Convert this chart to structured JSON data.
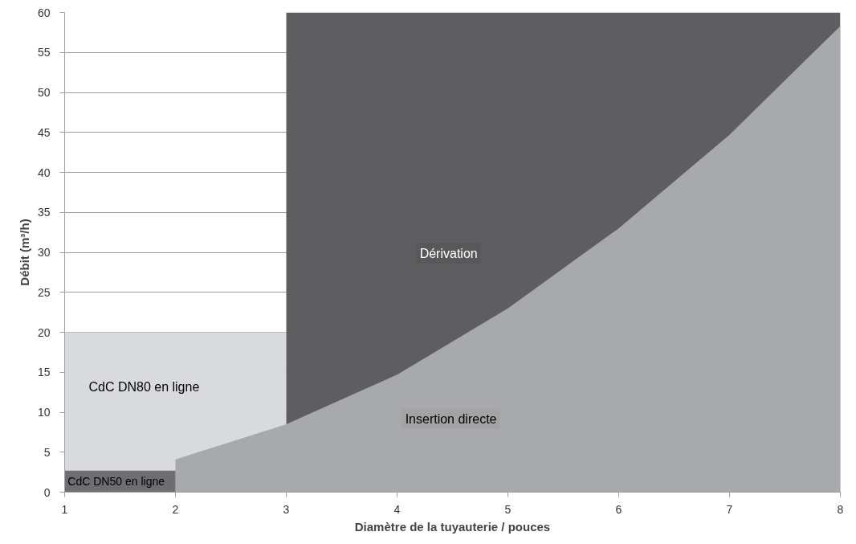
{
  "chart_data": {
    "type": "area",
    "xlabel": "Diamètre de la tuyauterie / pouces",
    "ylabel": "Débit (m³/h)",
    "xlim": [
      1,
      8
    ],
    "xticks": [
      1,
      2,
      3,
      4,
      5,
      6,
      7,
      8
    ],
    "ylim": [
      0,
      60
    ],
    "yticks": [
      0,
      5,
      10,
      15,
      20,
      25,
      30,
      35,
      40,
      45,
      50,
      55,
      60
    ],
    "grid": "y",
    "series": [
      {
        "name": "CdC DN80 en ligne",
        "color": "#d9dadc",
        "x": [
          1,
          3
        ],
        "values": [
          20,
          20
        ]
      },
      {
        "name": "Dérivation",
        "color": "#5e5e60",
        "x": [
          3,
          8
        ],
        "values": [
          60,
          60
        ]
      },
      {
        "name": "Insertion directe",
        "color": "#a8a9ac",
        "x": [
          2,
          3,
          4,
          5,
          6,
          7,
          8
        ],
        "values": [
          4.1,
          8.5,
          14.7,
          23,
          33,
          44.7,
          58.3
        ]
      },
      {
        "name": "CdC DN50 en ligne",
        "color": "#6e6e70",
        "x": [
          1,
          2
        ],
        "values": [
          2.7,
          2.7
        ]
      }
    ]
  }
}
